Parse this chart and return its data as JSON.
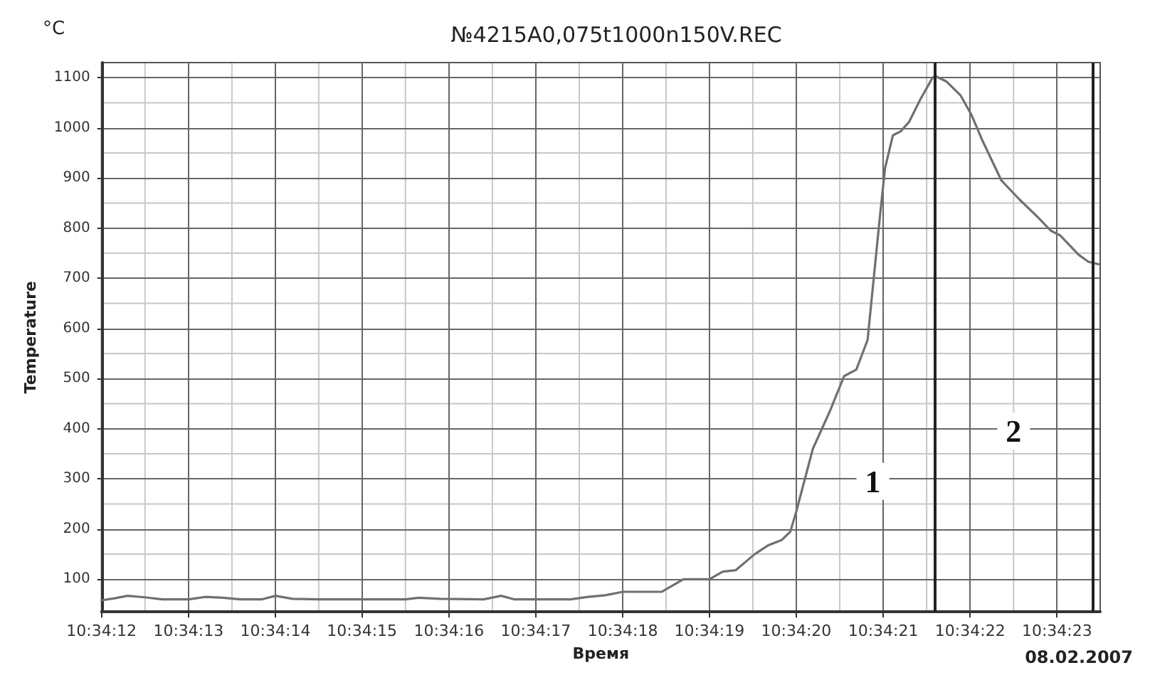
{
  "chart_data": {
    "type": "line",
    "title": "№4215A0,075t1000n150V.REC",
    "xlabel": "Время",
    "ylabel": "Temperature",
    "annotations": [
      "°C",
      "08.02.2007",
      {
        "text": "1",
        "x": 10.572467,
        "y": 295
      },
      {
        "text": "2",
        "x": 10.572917,
        "y": 395
      }
    ],
    "x": [
      10.57,
      10.570042,
      10.570083,
      10.570139,
      10.570194,
      10.570278,
      10.570333,
      10.570389,
      10.570444,
      10.570514,
      10.570556,
      10.570611,
      10.570694,
      10.570972,
      10.571014,
      10.571083,
      10.571222,
      10.571278,
      10.571319,
      10.5715,
      10.571556,
      10.571611,
      10.571667,
      10.571792,
      10.571861,
      10.571944,
      10.571986,
      10.572028,
      10.572089,
      10.572133,
      10.572175,
      10.572203,
      10.572222,
      10.572275,
      10.572328,
      10.572375,
      10.572414,
      10.57245,
      10.572489,
      10.572506,
      10.572531,
      10.572556,
      10.572583,
      10.572619,
      10.572658,
      10.572667,
      10.572703,
      10.572747,
      10.572783,
      10.572817,
      10.572878,
      10.572936,
      10.572994,
      10.573036,
      10.573067,
      10.573125,
      10.573156,
      10.573189
    ],
    "series": [
      {
        "color": "#707070",
        "values": [
          58,
          62,
          67,
          64,
          60,
          60,
          65,
          63,
          60,
          60,
          67,
          61,
          60,
          60,
          63,
          61,
          60,
          67,
          60,
          60,
          65,
          68,
          75,
          75,
          100,
          100,
          115,
          118,
          150,
          168,
          178,
          195,
          235,
          360,
          433,
          505,
          518,
          577,
          820,
          920,
          985,
          993,
          1012,
          1057,
          1100,
          1103,
          1092,
          1065,
          1025,
          975,
          895,
          857,
          822,
          795,
          785,
          747,
          733,
          728
        ]
      }
    ],
    "xlim": [
      10.57,
      10.573194
    ],
    "xticks": [
      {
        "value": 10.57,
        "label": "10:34:12"
      },
      {
        "value": 10.570278,
        "label": "10:34:13"
      },
      {
        "value": 10.570556,
        "label": "10:34:14"
      },
      {
        "value": 10.570833,
        "label": "10:34:15"
      },
      {
        "value": 10.571111,
        "label": "10:34:16"
      },
      {
        "value": 10.571389,
        "label": "10:34:17"
      },
      {
        "value": 10.571667,
        "label": "10:34:18"
      },
      {
        "value": 10.571944,
        "label": "10:34:19"
      },
      {
        "value": 10.572222,
        "label": "10:34:20"
      },
      {
        "value": 10.5725,
        "label": "10:34:21"
      },
      {
        "value": 10.572778,
        "label": "10:34:22"
      },
      {
        "value": 10.573056,
        "label": "10:34:23"
      }
    ],
    "ylim": [
      35,
      1130
    ],
    "yticks": [
      100,
      200,
      300,
      400,
      500,
      600,
      700,
      800,
      900,
      1000,
      1100
    ],
    "ref_lines": [
      {
        "axis": "x",
        "value": 10.572667,
        "color": "#222222"
      },
      {
        "axis": "x",
        "value": 10.573172,
        "color": "#222222"
      }
    ],
    "grid": true,
    "marker": "none",
    "line_style": "solid"
  }
}
